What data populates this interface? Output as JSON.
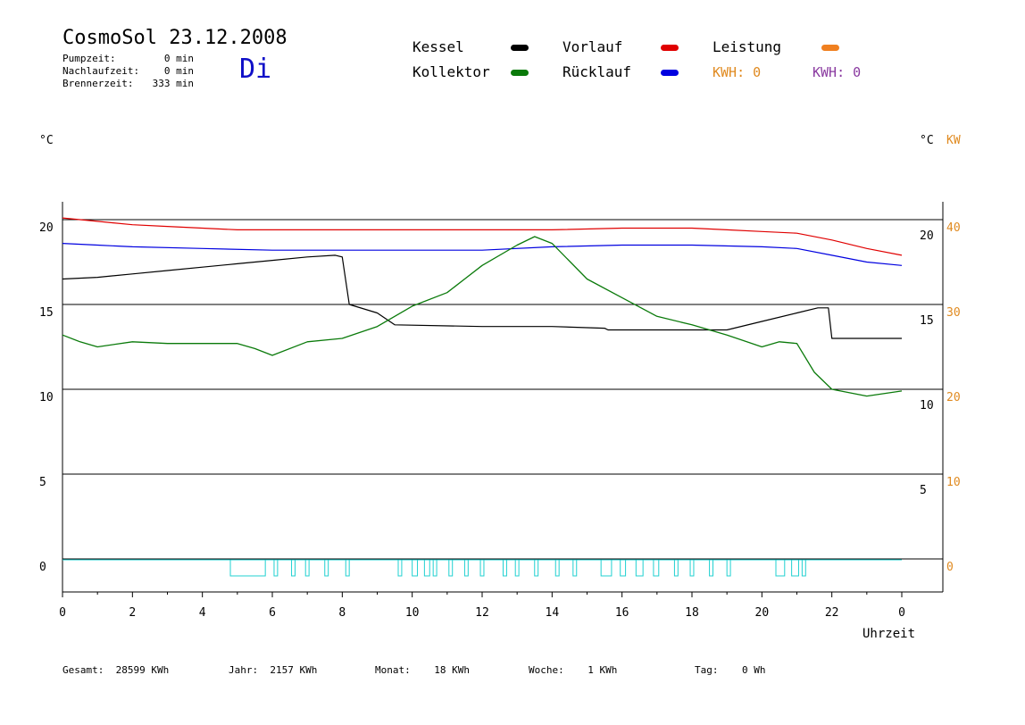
{
  "header": {
    "title": "CosmoSol 23.12.2008",
    "weekday": "Di",
    "stats": [
      {
        "label": "Pumpzeit:",
        "value": "0 min"
      },
      {
        "label": "Nachlaufzeit:",
        "value": "0 min"
      },
      {
        "label": "Brennerzeit:",
        "value": "333 min"
      }
    ]
  },
  "legend": {
    "items": [
      {
        "label": "Kessel",
        "color": "#000000"
      },
      {
        "label": "Kollektor",
        "color": "#0a7a0a"
      },
      {
        "label": "Vorlauf",
        "color": "#e00000"
      },
      {
        "label": "Rücklauf",
        "color": "#0000e0"
      },
      {
        "label": "Leistung",
        "color": "#f08020"
      }
    ],
    "kwh": [
      {
        "text": "KWH: 0",
        "color": "#e08a20"
      },
      {
        "text": "KWH: 0",
        "color": "#8a3aa0"
      }
    ]
  },
  "axes": {
    "left_unit": "°C",
    "right_unit": "°C",
    "right_unit2": "KW",
    "xlabel": "Uhrzeit"
  },
  "footer": [
    {
      "label": "Gesamt:",
      "value": "28599 KWh"
    },
    {
      "label": "Jahr:",
      "value": "2157 KWh"
    },
    {
      "label": "Monat:",
      "value": "18 KWh"
    },
    {
      "label": "Woche:",
      "value": "1 KWh"
    },
    {
      "label": "Tag:",
      "value": "0 Wh"
    }
  ],
  "chart_data": {
    "type": "line",
    "x_unit": "hour",
    "xlim": [
      0,
      24
    ],
    "x_ticks": [
      "0",
      "2",
      "4",
      "6",
      "8",
      "10",
      "12",
      "14",
      "16",
      "18",
      "20",
      "22",
      "0"
    ],
    "ylim": [
      -3,
      22
    ],
    "y_ticks_left": [
      "0",
      "5",
      "10",
      "15",
      "20"
    ],
    "y_ticks_left_values": [
      0,
      5,
      10,
      15,
      20
    ],
    "y_ticks_right": [
      "5",
      "10",
      "15",
      "20"
    ],
    "y_ticks_right_values": [
      5,
      10,
      15,
      20
    ],
    "y2_ticks": [
      "0",
      "10",
      "20",
      "30",
      "40"
    ],
    "y2_ticks_values": [
      0,
      10,
      20,
      30,
      40
    ],
    "grid": true,
    "series": [
      {
        "name": "Vorlauf",
        "color": "#e00000",
        "x": [
          0,
          1,
          2,
          3,
          4,
          5,
          6,
          8,
          10,
          12,
          14,
          16,
          18,
          19,
          20,
          21,
          22,
          23,
          24
        ],
        "y": [
          20.1,
          19.9,
          19.7,
          19.6,
          19.5,
          19.4,
          19.4,
          19.4,
          19.4,
          19.4,
          19.4,
          19.5,
          19.5,
          19.4,
          19.3,
          19.2,
          18.8,
          18.3,
          17.9
        ]
      },
      {
        "name": "Rücklauf",
        "color": "#0000e0",
        "x": [
          0,
          1,
          2,
          4,
          6,
          8,
          10,
          12,
          14,
          16,
          18,
          20,
          21,
          22,
          23,
          24
        ],
        "y": [
          18.6,
          18.5,
          18.4,
          18.3,
          18.2,
          18.2,
          18.2,
          18.2,
          18.4,
          18.5,
          18.5,
          18.4,
          18.3,
          17.9,
          17.5,
          17.3
        ]
      },
      {
        "name": "Kessel",
        "color": "#000000",
        "x": [
          0,
          1,
          2,
          3,
          4,
          5,
          6,
          7,
          7.8,
          8.0,
          8.2,
          9.0,
          9.5,
          12,
          14,
          15.5,
          15.6,
          18,
          19,
          20,
          21,
          21.6,
          21.9,
          22.0,
          24
        ],
        "y": [
          16.5,
          16.6,
          16.8,
          17.0,
          17.2,
          17.4,
          17.6,
          17.8,
          17.9,
          17.8,
          15.0,
          14.5,
          13.8,
          13.7,
          13.7,
          13.6,
          13.5,
          13.5,
          13.5,
          14.0,
          14.5,
          14.8,
          14.8,
          13.0,
          13.0
        ]
      },
      {
        "name": "Kollektor",
        "color": "#0a7a0a",
        "x": [
          0,
          0.5,
          1,
          2,
          3,
          4,
          5,
          5.5,
          6,
          7,
          8,
          9,
          10,
          11,
          11.5,
          12,
          13,
          13.5,
          14,
          15,
          16,
          17,
          18,
          19,
          20,
          20.5,
          21,
          21.5,
          22,
          23,
          24
        ],
        "y": [
          13.2,
          12.8,
          12.5,
          12.8,
          12.7,
          12.7,
          12.7,
          12.4,
          12.0,
          12.8,
          13.0,
          13.7,
          14.9,
          15.7,
          16.5,
          17.3,
          18.5,
          19.0,
          18.6,
          16.5,
          15.4,
          14.3,
          13.8,
          13.2,
          12.5,
          12.8,
          12.7,
          11.0,
          10.0,
          9.6,
          9.9
        ]
      }
    ],
    "pump_on_intervals": [
      [
        4.8,
        5.8
      ],
      [
        6.05,
        6.15
      ],
      [
        6.55,
        6.65
      ],
      [
        6.95,
        7.05
      ],
      [
        7.5,
        7.6
      ],
      [
        8.1,
        8.2
      ],
      [
        9.6,
        9.7
      ],
      [
        10.0,
        10.15
      ],
      [
        10.35,
        10.5
      ],
      [
        10.6,
        10.7
      ],
      [
        11.05,
        11.15
      ],
      [
        11.5,
        11.6
      ],
      [
        11.95,
        12.05
      ],
      [
        12.6,
        12.7
      ],
      [
        12.95,
        13.05
      ],
      [
        13.5,
        13.6
      ],
      [
        14.1,
        14.2
      ],
      [
        14.6,
        14.7
      ],
      [
        15.4,
        15.7
      ],
      [
        15.95,
        16.1
      ],
      [
        16.4,
        16.6
      ],
      [
        16.9,
        17.05
      ],
      [
        17.5,
        17.6
      ],
      [
        17.95,
        18.05
      ],
      [
        18.5,
        18.6
      ],
      [
        19.0,
        19.1
      ],
      [
        20.4,
        20.65
      ],
      [
        20.85,
        21.05
      ],
      [
        21.15,
        21.25
      ]
    ]
  }
}
